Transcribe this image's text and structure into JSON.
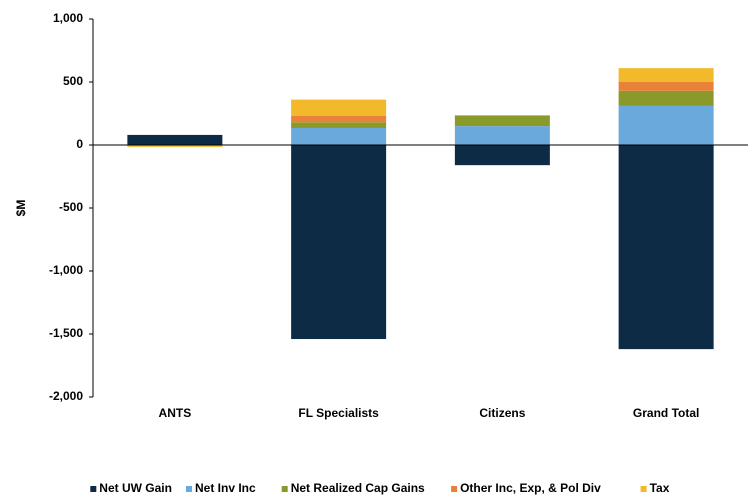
{
  "chart_data": {
    "type": "stacked_bar",
    "y_label": "$M",
    "categories": [
      "ANTS",
      "FL Specialists",
      "Citizens",
      "Grand Total"
    ],
    "series": [
      {
        "name": "Net UW Gain",
        "color": "#0d2b45",
        "values": [
          80,
          -1540,
          -160,
          -1620
        ]
      },
      {
        "name": "Net Inv Inc",
        "color": "#6aa9dc",
        "values": [
          0,
          135,
          150,
          310
        ]
      },
      {
        "name": "Net Realized Cap Gains",
        "color": "#8a9a2a",
        "values": [
          0,
          45,
          85,
          120
        ]
      },
      {
        "name": "Other Inc, Exp, & Pol Div",
        "color": "#e8823a",
        "values": [
          -5,
          50,
          0,
          70
        ]
      },
      {
        "name": "Tax",
        "color": "#f2b92a",
        "values": [
          -10,
          130,
          0,
          110
        ]
      }
    ],
    "ylim": [
      -2000,
      1000
    ],
    "yticks": [
      {
        "value": -2000,
        "label": "-2,000"
      },
      {
        "value": -1500,
        "label": "-1,500"
      },
      {
        "value": -1000,
        "label": "-1,000"
      },
      -500,
      0,
      500,
      {
        "value": 1000,
        "label": "1,000"
      }
    ],
    "grid": false,
    "legend": "bottom"
  }
}
